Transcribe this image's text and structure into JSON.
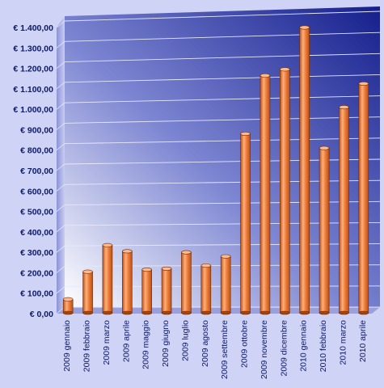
{
  "chart_data": {
    "type": "bar",
    "title": "",
    "xlabel": "",
    "ylabel": "",
    "categories": [
      "2009 gennaio",
      "2009 febbraio",
      "2009 marzo",
      "2009 aprile",
      "2009 maggio",
      "2009 giugno",
      "2009 luglio",
      "2009 agosto",
      "2009 settembre",
      "2009 ottobre",
      "2009 novembre",
      "2009 dicembre",
      "2010 gennaio",
      "2010 febbraio",
      "2010 marzo",
      "2010 aprile"
    ],
    "values": [
      70,
      205,
      335,
      305,
      215,
      220,
      300,
      235,
      280,
      880,
      1165,
      1195,
      1400,
      810,
      1010,
      1125
    ],
    "ylim": [
      0,
      1400
    ],
    "yticks": [
      "€ 0,00",
      "€ 100,00",
      "€ 200,00",
      "€ 300,00",
      "€ 400,00",
      "€ 500,00",
      "€ 600,00",
      "€ 700,00",
      "€ 800,00",
      "€ 900,00",
      "€ 1.000,00",
      "€ 1.100,00",
      "€ 1.200,00",
      "€ 1.300,00",
      "€ 1.400,00"
    ],
    "grid": true,
    "legend": "none",
    "colors": {
      "bar": "#f07f3c",
      "bar_dark": "#b8501a",
      "wall_dark": "#151f8c",
      "wall_light": "#ffffff",
      "text": "#0d1a66"
    }
  }
}
